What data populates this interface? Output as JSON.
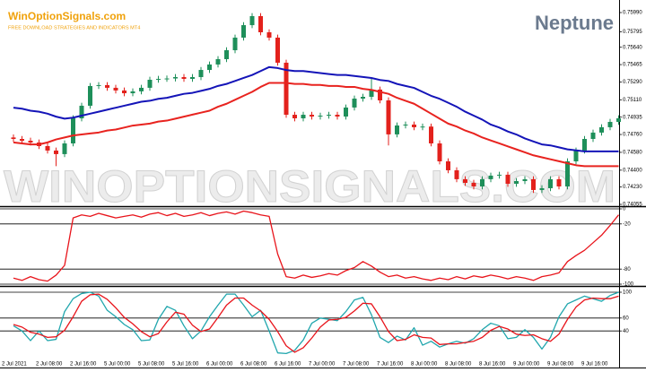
{
  "header": {
    "site": "WinOptionSignals.com",
    "tagline": "FREE DOWNLOAD STRATEGIES AND INDICATORS MT4",
    "watermark": "WINOPTIONSIGNALS.COM"
  },
  "chart_data": [
    {
      "type": "candlestick",
      "title": "Neptune",
      "categories": [
        "2 Jul 2021",
        null,
        null,
        null,
        "2 Jul 08:00",
        null,
        null,
        null,
        "2 Jul 16:00",
        null,
        null,
        null,
        "5 Jul 00:00",
        null,
        null,
        null,
        "5 Jul 08:00",
        null,
        null,
        null,
        "5 Jul 16:00",
        null,
        null,
        null,
        "6 Jul 00:00",
        null,
        null,
        null,
        "6 Jul 08:00",
        null,
        null,
        null,
        "6 Jul 16:00",
        null,
        null,
        null,
        "7 Jul 00:00",
        null,
        null,
        null,
        "7 Jul 08:00",
        null,
        null,
        null,
        "7 Jul 16:00",
        null,
        null,
        null,
        "8 Jul 00:00",
        null,
        null,
        null,
        "8 Jul 08:00",
        null,
        null,
        null,
        "8 Jul 16:00",
        null,
        null,
        null,
        "9 Jul 00:00",
        null,
        null,
        null,
        "9 Jul 08:00",
        null,
        null,
        null,
        "9 Jul 16:00",
        null,
        null,
        null
      ],
      "open": [
        0.7473,
        0.74715,
        0.74697,
        0.74679,
        0.74643,
        0.74598,
        0.74562,
        0.7467,
        0.74923,
        0.7505,
        0.75249,
        0.75258,
        0.75231,
        0.75204,
        0.75176,
        0.75195,
        0.75231,
        0.75312,
        0.75321,
        0.75325,
        0.75339,
        0.75321,
        0.75339,
        0.75411,
        0.75466,
        0.7552,
        0.7561,
        0.75737,
        0.75863,
        0.75954,
        0.75791,
        0.75737,
        0.75484,
        0.74959,
        0.74923,
        0.74959,
        0.74941,
        0.7495,
        0.74959,
        0.74941,
        0.75032,
        0.75122,
        0.7514,
        0.75213,
        0.75104,
        0.74761,
        0.74851,
        0.7486,
        0.74833,
        0.7484,
        0.7467,
        0.74489,
        0.74399,
        0.74309,
        0.74272,
        0.74236,
        0.74309,
        0.74345,
        0.74354,
        0.74263,
        0.7429,
        0.74309,
        0.742,
        0.74218,
        0.74309,
        0.74236,
        0.74489,
        0.74598,
        0.74715,
        0.74779,
        0.74833,
        0.74887
      ],
      "high": [
        0.7476,
        0.74745,
        0.74727,
        0.74709,
        0.74673,
        0.74628,
        0.747,
        0.74953,
        0.7508,
        0.75279,
        0.75288,
        0.75288,
        0.75261,
        0.75234,
        0.75225,
        0.75261,
        0.75342,
        0.75351,
        0.75355,
        0.75369,
        0.75369,
        0.75369,
        0.75441,
        0.75496,
        0.7555,
        0.7564,
        0.75767,
        0.75893,
        0.75984,
        0.75984,
        0.75821,
        0.75767,
        0.75514,
        0.74989,
        0.74989,
        0.74989,
        0.7498,
        0.74989,
        0.74989,
        0.75062,
        0.75152,
        0.7517,
        0.7533,
        0.75243,
        0.75134,
        0.74881,
        0.7489,
        0.7489,
        0.7487,
        0.7487,
        0.747,
        0.74519,
        0.74429,
        0.74339,
        0.74302,
        0.74339,
        0.74375,
        0.74384,
        0.74384,
        0.7432,
        0.74339,
        0.74339,
        0.74248,
        0.74339,
        0.74339,
        0.74519,
        0.74628,
        0.74745,
        0.74809,
        0.74863,
        0.74917,
        0.74953
      ],
      "low": [
        0.74685,
        0.74667,
        0.74649,
        0.74613,
        0.74568,
        0.7444,
        0.74532,
        0.7464,
        0.74893,
        0.7502,
        0.75219,
        0.75201,
        0.75174,
        0.75146,
        0.75146,
        0.75165,
        0.75201,
        0.75282,
        0.75291,
        0.75295,
        0.75291,
        0.75291,
        0.75309,
        0.75381,
        0.75436,
        0.7549,
        0.7558,
        0.75707,
        0.75833,
        0.75761,
        0.75707,
        0.75454,
        0.74929,
        0.74893,
        0.74893,
        0.74911,
        0.74911,
        0.7492,
        0.74911,
        0.74911,
        0.75002,
        0.75092,
        0.7511,
        0.75074,
        0.7465,
        0.74731,
        0.74821,
        0.74803,
        0.74803,
        0.7464,
        0.74459,
        0.74369,
        0.74279,
        0.74242,
        0.74206,
        0.74206,
        0.74279,
        0.74315,
        0.74233,
        0.74233,
        0.7426,
        0.7417,
        0.7417,
        0.74188,
        0.74206,
        0.74206,
        0.74459,
        0.74568,
        0.74685,
        0.74749,
        0.74803,
        0.74857
      ],
      "close": [
        0.74715,
        0.74697,
        0.74679,
        0.74643,
        0.74598,
        0.74562,
        0.7467,
        0.74923,
        0.7505,
        0.75249,
        0.75258,
        0.75231,
        0.75204,
        0.75176,
        0.75195,
        0.75231,
        0.75312,
        0.75321,
        0.75325,
        0.75339,
        0.75321,
        0.75339,
        0.75411,
        0.75466,
        0.7552,
        0.7561,
        0.75737,
        0.75863,
        0.75954,
        0.75791,
        0.75737,
        0.75484,
        0.74959,
        0.74923,
        0.74959,
        0.74941,
        0.7495,
        0.74959,
        0.74941,
        0.75032,
        0.75122,
        0.7514,
        0.75213,
        0.75104,
        0.74761,
        0.74851,
        0.7486,
        0.74833,
        0.7484,
        0.7467,
        0.74489,
        0.74399,
        0.74309,
        0.74272,
        0.74236,
        0.74309,
        0.74345,
        0.74354,
        0.74263,
        0.7429,
        0.74309,
        0.742,
        0.74218,
        0.74309,
        0.74236,
        0.74489,
        0.74598,
        0.74715,
        0.74779,
        0.74833,
        0.74887,
        0.74923
      ],
      "up_color": "#1e8f5a",
      "down_color": "#e3211c",
      "lines": [
        {
          "color": "#1414b8",
          "values": [
            0.7503,
            0.7502,
            0.75,
            0.7499,
            0.7497,
            0.7494,
            0.7492,
            0.7493,
            0.7495,
            0.7497,
            0.7499,
            0.7501,
            0.7503,
            0.7505,
            0.7507,
            0.7509,
            0.751,
            0.7512,
            0.7513,
            0.7515,
            0.7517,
            0.7518,
            0.752,
            0.7522,
            0.7525,
            0.7527,
            0.753,
            0.7533,
            0.7536,
            0.754,
            0.7544,
            0.7543,
            0.7541,
            0.754,
            0.754,
            0.7539,
            0.7538,
            0.7537,
            0.7536,
            0.7536,
            0.7535,
            0.7534,
            0.7533,
            0.7531,
            0.753,
            0.7527,
            0.7525,
            0.7523,
            0.7519,
            0.7515,
            0.7512,
            0.7508,
            0.7504,
            0.7499,
            0.7495,
            0.7491,
            0.7486,
            0.7483,
            0.7479,
            0.7476,
            0.7472,
            0.7469,
            0.7466,
            0.7465,
            0.7463,
            0.7461,
            0.746,
            0.7459,
            0.7459,
            0.7459,
            0.7459,
            0.7459
          ]
        },
        {
          "color": "#e8231f",
          "values": [
            0.7468,
            0.7467,
            0.7466,
            0.7466,
            0.7468,
            0.7471,
            0.7473,
            0.7475,
            0.7476,
            0.7477,
            0.7478,
            0.748,
            0.7481,
            0.7483,
            0.7485,
            0.7486,
            0.7487,
            0.7489,
            0.749,
            0.7492,
            0.7494,
            0.7496,
            0.7498,
            0.75,
            0.7504,
            0.7507,
            0.7511,
            0.7515,
            0.7519,
            0.7524,
            0.7528,
            0.7528,
            0.7528,
            0.7527,
            0.7527,
            0.7526,
            0.7526,
            0.7525,
            0.7525,
            0.7524,
            0.7524,
            0.7522,
            0.7521,
            0.7519,
            0.7517,
            0.7513,
            0.751,
            0.7507,
            0.7502,
            0.7497,
            0.7492,
            0.7487,
            0.7484,
            0.748,
            0.7477,
            0.7473,
            0.747,
            0.7467,
            0.7464,
            0.7461,
            0.7458,
            0.7455,
            0.7453,
            0.7451,
            0.7449,
            0.7447,
            0.7445,
            0.7444,
            0.7444,
            0.7444,
            0.7444,
            0.7444
          ]
        }
      ],
      "ylim": [
        0.74055,
        0.7599
      ],
      "yticks": [
        {
          "value": 0.7599,
          "label": "0.75990"
        },
        {
          "value": 0.75795,
          "label": "0.75795"
        },
        {
          "value": 0.7564,
          "label": "0.75640"
        },
        {
          "value": 0.75465,
          "label": "0.75465"
        },
        {
          "value": 0.7529,
          "label": "0.75290"
        },
        {
          "value": 0.7511,
          "label": "0.75110"
        },
        {
          "value": 0.74935,
          "label": "0.74935"
        },
        {
          "value": 0.7476,
          "label": "0.74760"
        },
        {
          "value": 0.7458,
          "label": "0.74580"
        },
        {
          "value": 0.744,
          "label": "0.74400"
        },
        {
          "value": 0.7423,
          "label": "0.74230"
        },
        {
          "value": 0.74055,
          "label": "0.74055"
        }
      ]
    },
    {
      "type": "line",
      "series": [
        {
          "color": "#e8141b",
          "values": [
            -92,
            -95,
            -90,
            -94,
            -96,
            -88,
            -75,
            -12,
            -8,
            -10,
            -6,
            -9,
            -12,
            -10,
            -8,
            -11,
            -7,
            -5,
            -9,
            -6,
            -10,
            -8,
            -5,
            -9,
            -6,
            -4,
            -7,
            -3,
            -5,
            -8,
            -10,
            -60,
            -90,
            -92,
            -88,
            -91,
            -89,
            -86,
            -88,
            -82,
            -78,
            -70,
            -76,
            -84,
            -90,
            -88,
            -92,
            -90,
            -93,
            -95,
            -92,
            -94,
            -90,
            -93,
            -89,
            -91,
            -88,
            -90,
            -93,
            -90,
            -92,
            -95,
            -90,
            -88,
            -85,
            -70,
            -62,
            -55,
            -45,
            -35,
            -22,
            -8
          ]
        }
      ],
      "ylim": [
        -100,
        0
      ],
      "yticks": [
        0,
        -20,
        -80,
        -100
      ]
    },
    {
      "type": "line",
      "series": [
        {
          "color": "#20a6ad",
          "values": [
            48,
            40,
            25,
            40,
            25,
            27,
            70,
            90,
            98,
            100,
            94,
            72,
            62,
            50,
            42,
            25,
            26,
            58,
            78,
            72,
            48,
            28,
            40,
            62,
            80,
            97,
            97,
            80,
            62,
            72,
            40,
            6,
            5,
            10,
            26,
            52,
            60,
            58,
            56,
            70,
            88,
            92,
            65,
            30,
            22,
            32,
            26,
            45,
            18,
            24,
            15,
            20,
            24,
            21,
            28,
            42,
            52,
            48,
            28,
            30,
            42,
            30,
            12,
            30,
            62,
            82,
            88,
            94,
            90,
            86,
            95,
            100
          ]
        },
        {
          "color": "#e8141b",
          "values": [
            50,
            46,
            38,
            35,
            30,
            31,
            41,
            62,
            86,
            96,
            97,
            89,
            76,
            61,
            51,
            39,
            31,
            36,
            54,
            69,
            66,
            49,
            39,
            43,
            61,
            80,
            91,
            91,
            80,
            71,
            58,
            39,
            17,
            7,
            14,
            29,
            46,
            57,
            58,
            61,
            71,
            83,
            82,
            62,
            39,
            25,
            27,
            34,
            30,
            29,
            19,
            20,
            20,
            22,
            24,
            30,
            41,
            47,
            43,
            35,
            33,
            34,
            28,
            24,
            35,
            58,
            77,
            88,
            91,
            90,
            90,
            94
          ]
        }
      ],
      "ylim": [
        0,
        100
      ],
      "yticks": [
        100,
        60,
        40
      ]
    }
  ]
}
